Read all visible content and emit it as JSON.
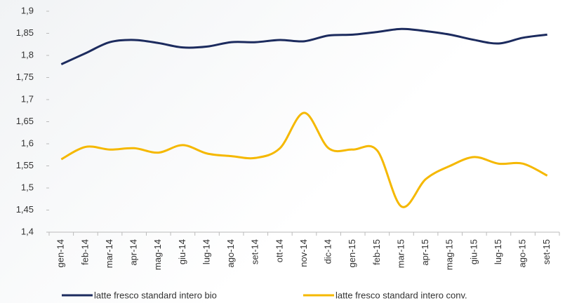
{
  "chart_data": {
    "type": "line",
    "categories": [
      "gen-14",
      "feb-14",
      "mar-14",
      "apr-14",
      "mag-14",
      "giu-14",
      "lug-14",
      "ago-14",
      "set-14",
      "ott-14",
      "nov-14",
      "dic-14",
      "gen-15",
      "feb-15",
      "mar-15",
      "apr-15",
      "mag-15",
      "giu-15",
      "lug-15",
      "ago-15",
      "set-15"
    ],
    "series": [
      {
        "name": "latte fresco standard intero bio",
        "color": "#1c2b5e",
        "values": [
          1.78,
          1.805,
          1.83,
          1.835,
          1.828,
          1.818,
          1.82,
          1.83,
          1.83,
          1.835,
          1.832,
          1.845,
          1.847,
          1.853,
          1.86,
          1.855,
          1.847,
          1.835,
          1.827,
          1.84,
          1.847
        ]
      },
      {
        "name": "latte fresco standard intero conv.",
        "color": "#f5b800",
        "values": [
          1.565,
          1.593,
          1.587,
          1.59,
          1.58,
          1.597,
          1.578,
          1.572,
          1.568,
          1.59,
          1.67,
          1.59,
          1.587,
          1.585,
          1.458,
          1.52,
          1.55,
          1.57,
          1.555,
          1.555,
          1.528
        ]
      }
    ],
    "ylim": [
      1.4,
      1.9
    ],
    "yticks": [
      {
        "value": 1.4,
        "label": "1,4"
      },
      {
        "value": 1.45,
        "label": "1,45"
      },
      {
        "value": 1.5,
        "label": "1,5"
      },
      {
        "value": 1.55,
        "label": "1,55"
      },
      {
        "value": 1.6,
        "label": "1,6"
      },
      {
        "value": 1.65,
        "label": "1,65"
      },
      {
        "value": 1.7,
        "label": "1,7"
      },
      {
        "value": 1.75,
        "label": "1,75"
      },
      {
        "value": 1.8,
        "label": "1,8"
      },
      {
        "value": 1.85,
        "label": "1,85"
      },
      {
        "value": 1.9,
        "label": "1,9"
      }
    ],
    "legend": "bottom"
  }
}
